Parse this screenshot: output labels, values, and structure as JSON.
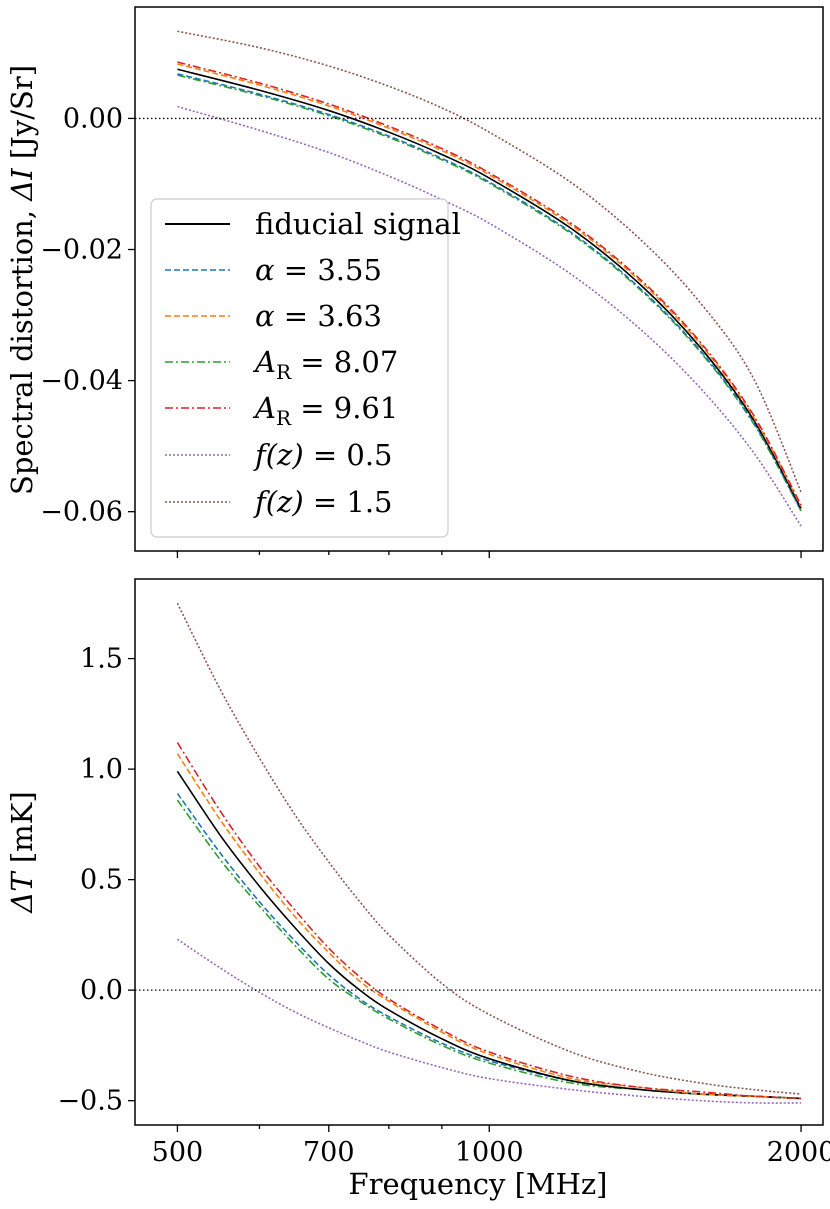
{
  "chart_data": [
    {
      "type": "line",
      "panel": "top",
      "ylabel_text": "Spectral distortion, ",
      "ylabel_symbol": "ΔI",
      "ylabel_unit": " [Jy/Sr]",
      "xlabel": "",
      "x_scale": "log",
      "xlim": [
        455,
        2100
      ],
      "ylim": [
        -0.066,
        0.017
      ],
      "yticks": [
        0.0,
        -0.02,
        -0.04,
        -0.06
      ],
      "ytick_labels": [
        "0.00",
        "−0.02",
        "−0.04",
        "−0.06"
      ],
      "xticks_major": [
        500,
        1000,
        2000
      ],
      "xticks_minor": [
        600,
        700,
        800,
        900
      ],
      "reference_line": 0.0,
      "x": [
        500,
        600,
        700,
        800,
        900,
        1000,
        1200,
        1400,
        1600,
        1800,
        2000
      ],
      "series": [
        {
          "name": "fiducial",
          "values": [
            0.0075,
            0.0043,
            0.0012,
            -0.0021,
            -0.0055,
            -0.0091,
            -0.0168,
            -0.0254,
            -0.035,
            -0.046,
            -0.0595
          ]
        },
        {
          "name": "alpha_355",
          "values": [
            0.0068,
            0.0037,
            0.0006,
            -0.0027,
            -0.0061,
            -0.0097,
            -0.0174,
            -0.026,
            -0.0355,
            -0.0464,
            -0.0598
          ]
        },
        {
          "name": "alpha_363",
          "values": [
            0.0083,
            0.0051,
            0.0019,
            -0.0015,
            -0.0049,
            -0.0086,
            -0.0163,
            -0.0249,
            -0.0345,
            -0.0456,
            -0.0592
          ]
        },
        {
          "name": "ar_807",
          "values": [
            0.0066,
            0.0035,
            0.0004,
            -0.0029,
            -0.0063,
            -0.0099,
            -0.0176,
            -0.0262,
            -0.0357,
            -0.0466,
            -0.0599
          ]
        },
        {
          "name": "ar_961",
          "values": [
            0.0086,
            0.0054,
            0.0022,
            -0.0012,
            -0.0046,
            -0.0083,
            -0.016,
            -0.0246,
            -0.0342,
            -0.0453,
            -0.059
          ]
        },
        {
          "name": "fz_05",
          "values": [
            0.0018,
            -0.0018,
            -0.0052,
            -0.0088,
            -0.0124,
            -0.016,
            -0.0238,
            -0.0322,
            -0.0412,
            -0.051,
            -0.0622
          ]
        },
        {
          "name": "fz_15",
          "values": [
            0.0133,
            0.0108,
            0.008,
            0.0049,
            0.0016,
            -0.0021,
            -0.0098,
            -0.0185,
            -0.0282,
            -0.0397,
            -0.057
          ]
        }
      ]
    },
    {
      "type": "line",
      "panel": "bottom",
      "ylabel_symbol": "ΔT",
      "ylabel_unit": " [mK]",
      "xlabel": "Frequency [MHz]",
      "x_scale": "log",
      "xlim": [
        455,
        2100
      ],
      "ylim": [
        -0.61,
        1.86
      ],
      "yticks": [
        1.5,
        1.0,
        0.5,
        0.0,
        -0.5
      ],
      "ytick_labels": [
        "1.5",
        "1.0",
        "0.5",
        "0.0",
        "−0.5"
      ],
      "xticks_major": [
        500,
        700,
        1000,
        2000
      ],
      "xtick_labels": [
        "500",
        "700",
        "1000",
        "2000"
      ],
      "xticks_minor": [
        600,
        800,
        900
      ],
      "reference_line": 0.0,
      "x": [
        500,
        550,
        600,
        650,
        700,
        750,
        800,
        900,
        1000,
        1200,
        1400,
        1600,
        1800,
        2000
      ],
      "series": [
        {
          "name": "fiducial",
          "values": [
            0.99,
            0.7,
            0.47,
            0.28,
            0.12,
            0.0,
            -0.09,
            -0.22,
            -0.31,
            -0.41,
            -0.45,
            -0.47,
            -0.48,
            -0.49
          ]
        },
        {
          "name": "alpha_355",
          "values": [
            0.89,
            0.62,
            0.4,
            0.22,
            0.07,
            -0.04,
            -0.12,
            -0.24,
            -0.32,
            -0.41,
            -0.45,
            -0.47,
            -0.48,
            -0.49
          ]
        },
        {
          "name": "alpha_363",
          "values": [
            1.07,
            0.77,
            0.53,
            0.33,
            0.17,
            0.04,
            -0.05,
            -0.19,
            -0.29,
            -0.4,
            -0.44,
            -0.47,
            -0.48,
            -0.49
          ]
        },
        {
          "name": "ar_807",
          "values": [
            0.86,
            0.59,
            0.38,
            0.2,
            0.05,
            -0.05,
            -0.13,
            -0.25,
            -0.33,
            -0.42,
            -0.45,
            -0.47,
            -0.48,
            -0.49
          ]
        },
        {
          "name": "ar_961",
          "values": [
            1.12,
            0.81,
            0.56,
            0.36,
            0.19,
            0.06,
            -0.04,
            -0.18,
            -0.28,
            -0.39,
            -0.44,
            -0.46,
            -0.48,
            -0.49
          ]
        },
        {
          "name": "fz_05",
          "values": [
            0.23,
            0.1,
            -0.01,
            -0.1,
            -0.17,
            -0.23,
            -0.28,
            -0.35,
            -0.4,
            -0.45,
            -0.48,
            -0.5,
            -0.51,
            -0.51
          ]
        },
        {
          "name": "fz_15",
          "values": [
            1.75,
            1.36,
            1.05,
            0.79,
            0.58,
            0.4,
            0.25,
            0.03,
            -0.11,
            -0.28,
            -0.37,
            -0.42,
            -0.45,
            -0.47
          ]
        }
      ]
    }
  ],
  "legend": {
    "placement": "lower-left of top panel",
    "entries": [
      {
        "key": "fiducial",
        "pre": "fiducial signal",
        "sym": "",
        "sub": "",
        "post": "",
        "color": "#000000",
        "dash": ""
      },
      {
        "key": "alpha_355",
        "pre": "",
        "sym": "α",
        "sub": "",
        "post": " = 3.55",
        "color": "#1f77b4",
        "dash": "6 3"
      },
      {
        "key": "alpha_363",
        "pre": "",
        "sym": "α",
        "sub": "",
        "post": " = 3.63",
        "color": "#ff7f0e",
        "dash": "6 3"
      },
      {
        "key": "ar_807",
        "pre": "",
        "sym": "A",
        "sub": "R",
        "post": " = 8.07",
        "color": "#2ca02c",
        "dash": "8 3 2 3"
      },
      {
        "key": "ar_961",
        "pre": "",
        "sym": "A",
        "sub": "R",
        "post": " = 9.61",
        "color": "#d62728",
        "dash": "8 3 2 3"
      },
      {
        "key": "fz_05",
        "pre": "",
        "sym": "f(z)",
        "sub": "",
        "post": " = 0.5",
        "color": "#9467bd",
        "dash": "2 2"
      },
      {
        "key": "fz_15",
        "pre": "",
        "sym": "f(z)",
        "sub": "",
        "post": " = 1.5",
        "color": "#8c564b",
        "dash": "2 2"
      }
    ]
  }
}
